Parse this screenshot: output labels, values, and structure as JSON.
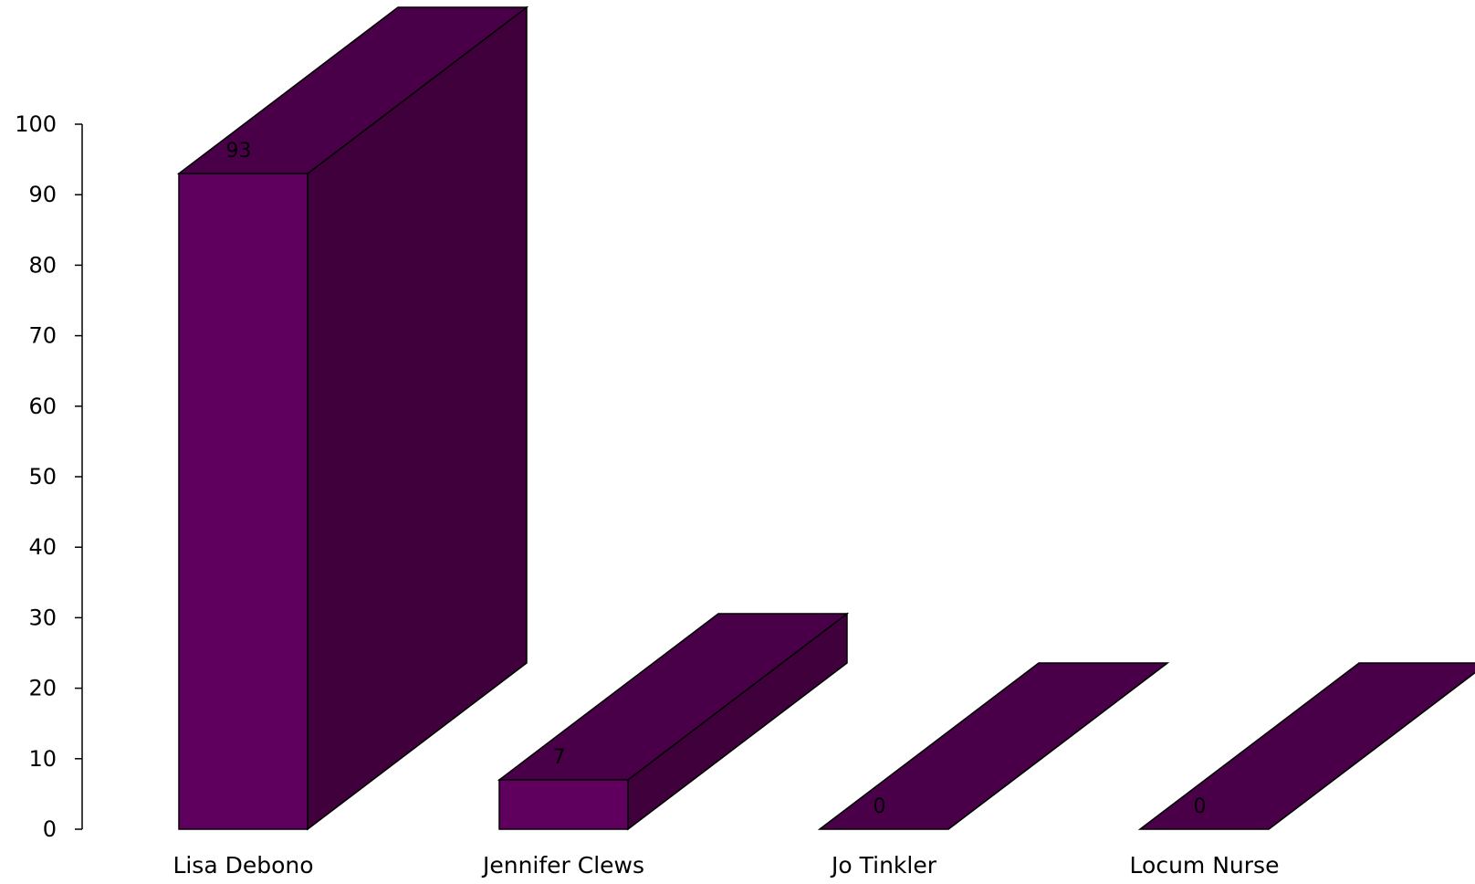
{
  "chart_data": {
    "type": "bar",
    "style": "3d",
    "categories": [
      "Lisa Debono",
      "Jennifer Clews",
      "Jo Tinkler",
      "Locum Nurse"
    ],
    "values": [
      93,
      7,
      0,
      0
    ],
    "data_labels": [
      "93",
      "7",
      "0",
      "0"
    ],
    "title": "",
    "xlabel": "",
    "ylabel": "",
    "ylim": [
      0,
      100
    ],
    "yticks": [
      "0",
      "10",
      "20",
      "30",
      "40",
      "50",
      "60",
      "70",
      "80",
      "90",
      "100"
    ],
    "grid": false,
    "legend": "none",
    "colors": {
      "front": "#5f005f",
      "top": "#4a0048",
      "side": "#3f003c",
      "outline": "#000000"
    }
  }
}
